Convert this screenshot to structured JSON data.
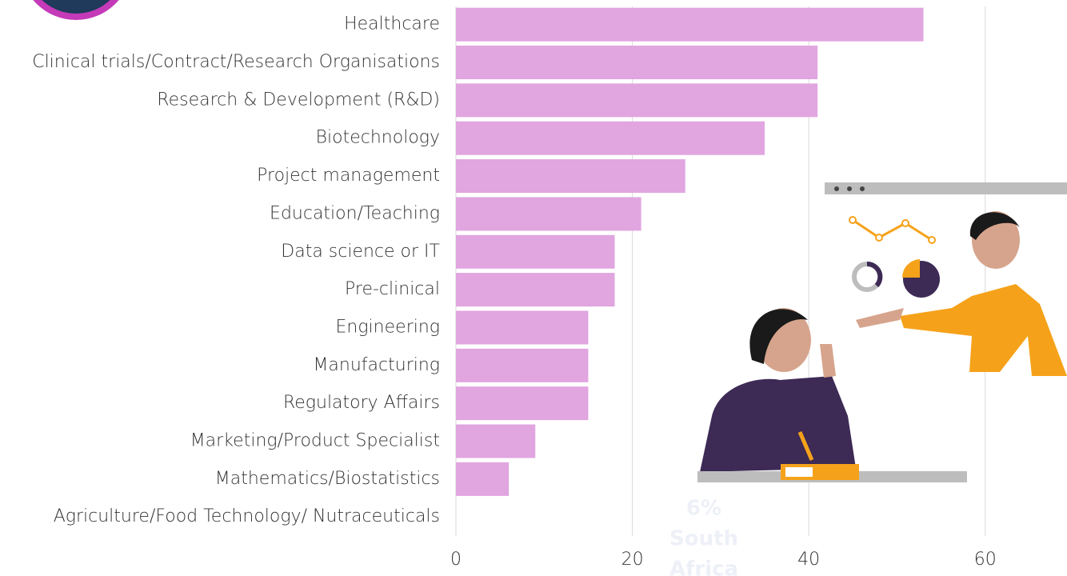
{
  "chart_data": {
    "type": "bar",
    "orientation": "horizontal",
    "categories": [
      "Healthcare",
      "Clinical trials/Contract/Research Organisations",
      "Research & Development (R&D)",
      "Biotechnology",
      "Project management",
      "Education/Teaching",
      "Data science or IT",
      "Pre-clinical",
      "Engineering",
      "Manufacturing",
      "Regulatory Affairs",
      "Marketing/Product Specialist",
      "Mathematics/Biostatistics",
      "Agriculture/Food Technology/ Nutraceuticals"
    ],
    "values": [
      53,
      41,
      41,
      35,
      26,
      21,
      18,
      18,
      15,
      15,
      15,
      9,
      6,
      0
    ],
    "color": "#e1a5e0",
    "xlim": [
      0,
      69
    ],
    "xticks": [
      0,
      20,
      40,
      60
    ],
    "grid": true,
    "annotation": [
      "6%",
      "South",
      "Africa"
    ]
  }
}
